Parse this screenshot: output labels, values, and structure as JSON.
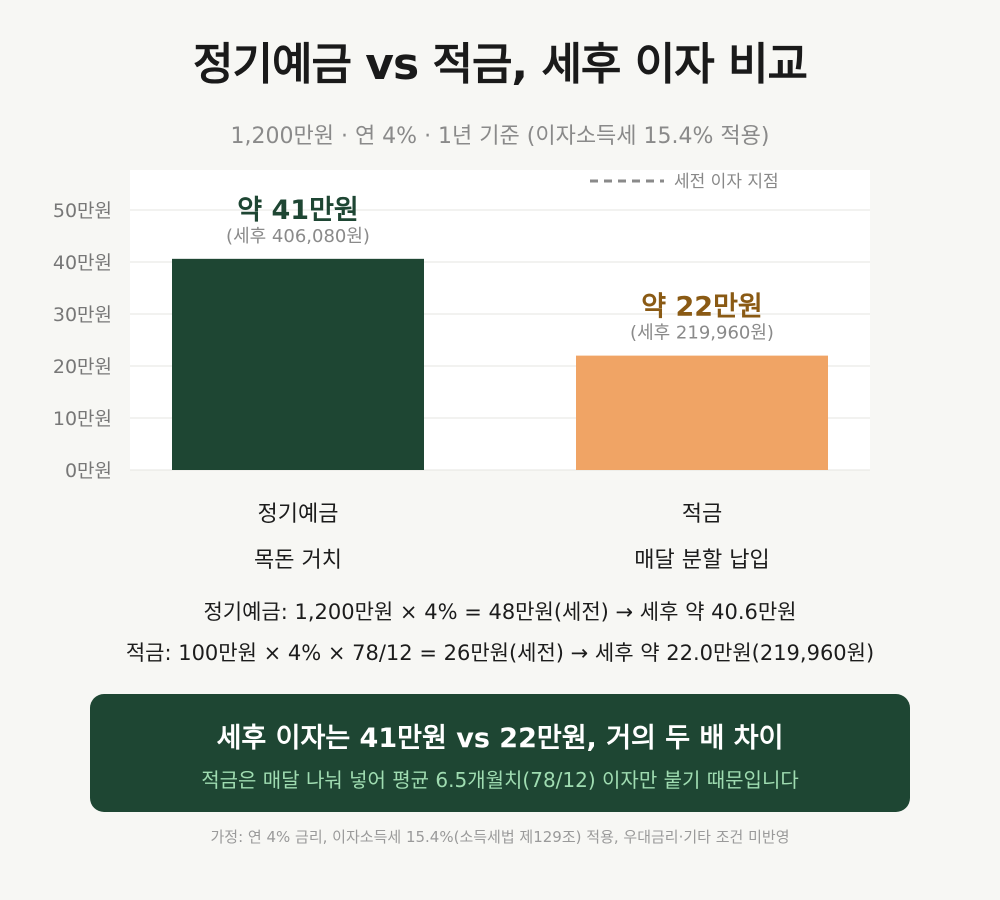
{
  "title": "정기예금 vs 적금, 세후 이자 비교",
  "subtitle": "1,200만원 · 연 4% · 1년 기준 (이자소득세 15.4% 적용)",
  "chart_data": {
    "type": "bar",
    "categories": [
      "정기예금",
      "적금"
    ],
    "category_sublabels": [
      "목돈 거치",
      "매달 분할 납입"
    ],
    "values": [
      40.608,
      21.996
    ],
    "value_labels": [
      "약 41만원",
      "약 22만원"
    ],
    "value_sublabels": [
      "(세후 406,080원)",
      "(세후 219,960원)"
    ],
    "bar_colors": [
      "#1e4633",
      "#f0a465"
    ],
    "value_label_colors": [
      "#1e4633",
      "#8a5a14"
    ],
    "ylim": [
      0,
      50
    ],
    "yticks": [
      0,
      10,
      20,
      30,
      40,
      50
    ],
    "ytick_labels": [
      "0만원",
      "10만원",
      "20만원",
      "30만원",
      "40만원",
      "50만원"
    ],
    "grid": true,
    "legend": {
      "label": "세전 이자 지점",
      "style": "dashed",
      "placement": "top-right"
    }
  },
  "formulas": [
    "정기예금: 1,200만원 × 4% = 48만원(세전) → 세후 약 40.6만원",
    "적금: 100만원 × 4% × 78/12 = 26만원(세전) → 세후 약 22.0만원(219,960원)"
  ],
  "summary": {
    "main": "세후 이자는 41만원 vs 22만원, 거의 두 배 차이",
    "sub": "적금은 매달 나눠 넣어 평균 6.5개월치(78/12) 이자만 붙기 때문입니다"
  },
  "footnote": "가정: 연 4% 금리, 이자소득세 15.4%(소득세법 제129조) 적용, 우대금리·기타 조건 미반영",
  "colors": {
    "background": "#f7f7f4",
    "dark_green": "#1e4633",
    "orange": "#f0a465",
    "mint": "#9fdcb1"
  }
}
